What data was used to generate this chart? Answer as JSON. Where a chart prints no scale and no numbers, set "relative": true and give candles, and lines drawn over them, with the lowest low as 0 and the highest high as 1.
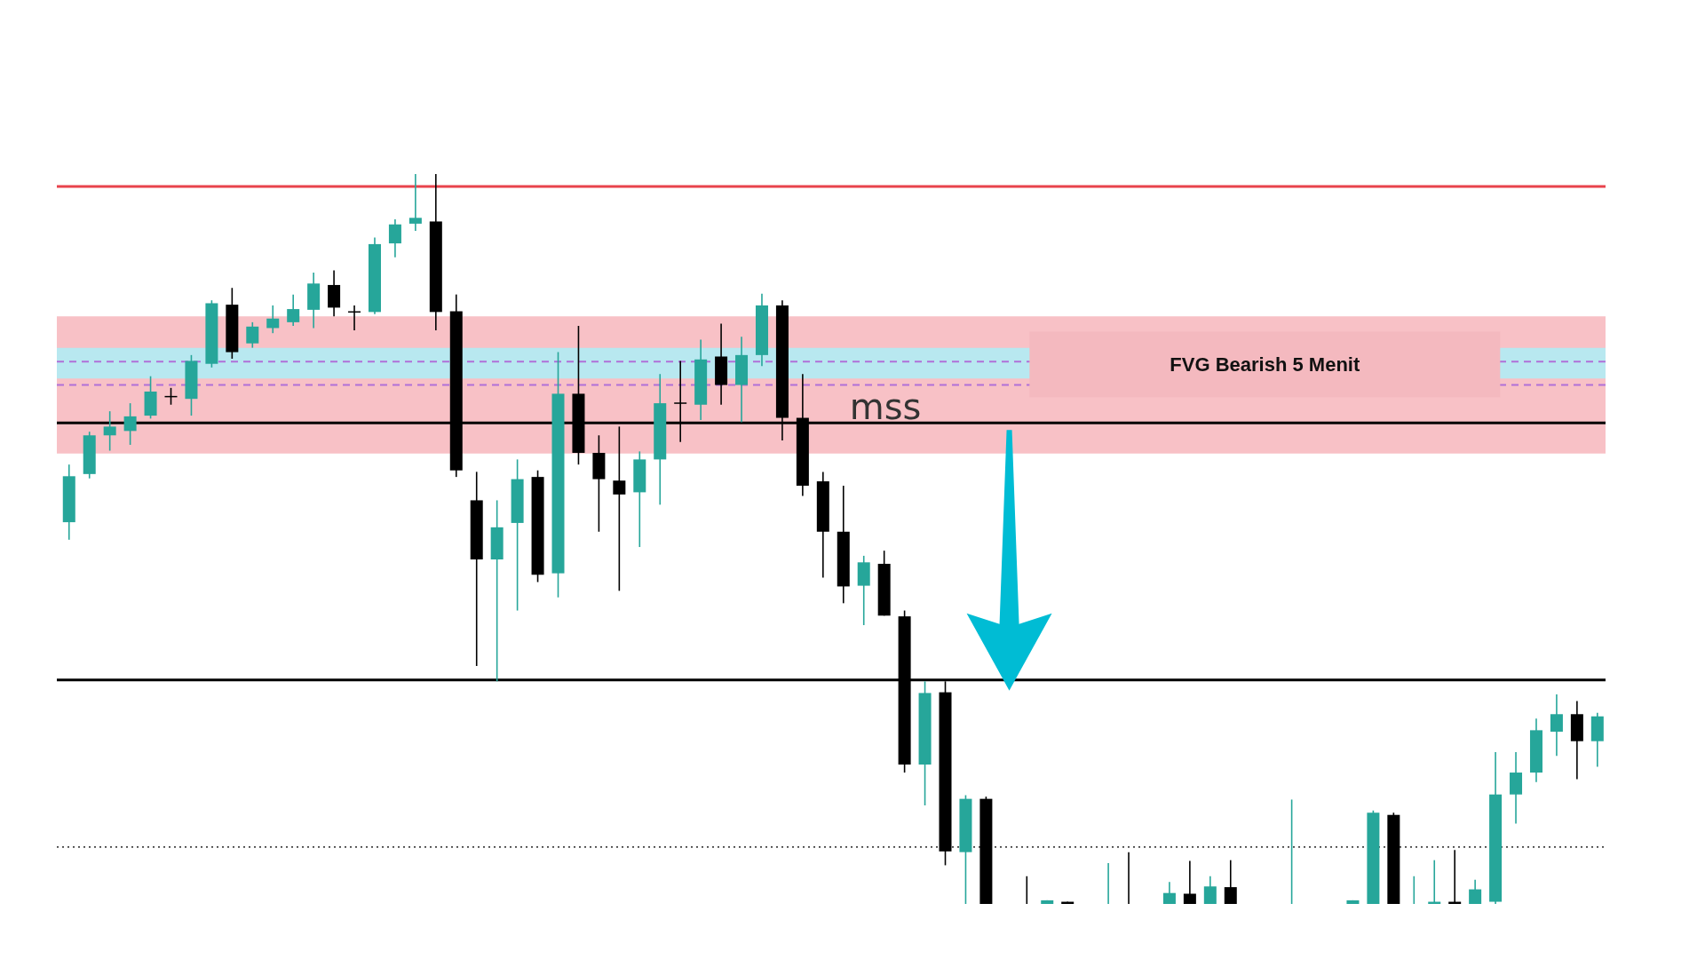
{
  "chart_data": {
    "type": "candlestick",
    "relative": true,
    "tick_labels": false,
    "categories": [
      null,
      null,
      null,
      null,
      null,
      null,
      null,
      null,
      null,
      null,
      null,
      null,
      null,
      null,
      null,
      null,
      null,
      null,
      null,
      null,
      null,
      null,
      null,
      null,
      null,
      null,
      null,
      null,
      null,
      null,
      null,
      null,
      null,
      null,
      null,
      null,
      null,
      null,
      null,
      null,
      null,
      null,
      null,
      null,
      null,
      null,
      null,
      null,
      null,
      null,
      null,
      null,
      null,
      null,
      null,
      null,
      null,
      null,
      null,
      null,
      null,
      null,
      null,
      null,
      null,
      null,
      null,
      null,
      null,
      null,
      null,
      null,
      null,
      null,
      null,
      null
    ],
    "ohlc": [
      [
        0.523,
        0.602,
        0.499,
        0.586
      ],
      [
        0.589,
        0.647,
        0.583,
        0.642
      ],
      [
        0.642,
        0.675,
        0.621,
        0.654
      ],
      [
        0.648,
        0.686,
        0.629,
        0.668
      ],
      [
        0.669,
        0.723,
        0.665,
        0.702
      ],
      [
        0.696,
        0.707,
        0.684,
        0.696
      ],
      [
        0.692,
        0.752,
        0.669,
        0.744
      ],
      [
        0.74,
        0.827,
        0.735,
        0.823
      ],
      [
        0.821,
        0.844,
        0.747,
        0.756
      ],
      [
        0.768,
        0.797,
        0.762,
        0.791
      ],
      [
        0.789,
        0.82,
        0.782,
        0.802
      ],
      [
        0.797,
        0.835,
        0.792,
        0.815
      ],
      [
        0.814,
        0.865,
        0.789,
        0.85
      ],
      [
        0.848,
        0.868,
        0.805,
        0.817
      ],
      [
        0.812,
        0.82,
        0.786,
        0.812
      ],
      [
        0.811,
        0.913,
        0.808,
        0.904
      ],
      [
        0.905,
        0.938,
        0.886,
        0.931
      ],
      [
        0.932,
        1,
        0.922,
        0.94
      ],
      [
        0.935,
        1,
        0.786,
        0.811
      ],
      [
        0.812,
        0.835,
        0.585,
        0.594
      ],
      [
        0.553,
        0.592,
        0.326,
        0.472
      ],
      [
        0.472,
        0.553,
        0.305,
        0.516
      ],
      [
        0.522,
        0.609,
        0.402,
        0.582
      ],
      [
        0.585,
        0.594,
        0.441,
        0.451
      ],
      [
        0.453,
        0.756,
        0.42,
        0.699
      ],
      [
        0.699,
        0.792,
        0.602,
        0.618
      ],
      [
        0.618,
        0.642,
        0.51,
        0.582
      ],
      [
        0.58,
        0.654,
        0.429,
        0.561
      ],
      [
        0.564,
        0.62,
        0.489,
        0.609
      ],
      [
        0.609,
        0.726,
        0.547,
        0.686
      ],
      [
        0.687,
        0.744,
        0.633,
        0.687
      ],
      [
        0.684,
        0.773,
        0.663,
        0.746
      ],
      [
        0.75,
        0.795,
        0.684,
        0.711
      ],
      [
        0.711,
        0.777,
        0.66,
        0.752
      ],
      [
        0.752,
        0.836,
        0.737,
        0.82
      ],
      [
        0.82,
        0.827,
        0.635,
        0.666
      ],
      [
        0.666,
        0.726,
        0.559,
        0.573
      ],
      [
        0.579,
        0.592,
        0.447,
        0.51
      ],
      [
        0.51,
        0.573,
        0.412,
        0.435
      ],
      [
        0.436,
        0.477,
        0.382,
        0.468
      ],
      [
        0.466,
        0.484,
        0.395,
        0.395
      ],
      [
        0.394,
        0.402,
        0.18,
        0.191
      ],
      [
        0.191,
        0.305,
        0.135,
        0.289
      ],
      [
        0.29,
        0.305,
        0.053,
        0.072
      ],
      [
        0.071,
        0.149,
        0,
        0.144
      ],
      [
        0.144,
        0.147,
        0,
        0
      ],
      null,
      [
        0,
        0.038,
        0,
        0
      ],
      [
        0,
        0.005,
        0,
        0.005
      ],
      [
        0.003,
        0.003,
        0,
        0
      ],
      null,
      [
        0,
        0.056,
        0,
        0
      ],
      [
        0,
        0.071,
        0,
        0
      ],
      null,
      [
        0,
        0.03,
        0,
        0.015
      ],
      [
        0.014,
        0.059,
        0,
        0
      ],
      [
        0,
        0.038,
        0,
        0.024
      ],
      [
        0.023,
        0.06,
        0,
        0
      ],
      null,
      null,
      [
        0,
        0.143,
        0,
        0
      ],
      null,
      null,
      [
        0,
        0.005,
        0,
        0.005
      ],
      [
        0,
        0.128,
        0,
        0.125
      ],
      [
        0.122,
        0.125,
        0,
        0
      ],
      [
        0,
        0.038,
        0,
        0
      ],
      [
        0,
        0.06,
        0,
        0.003
      ],
      [
        0.003,
        0.074,
        0,
        0
      ],
      [
        0,
        0.033,
        0,
        0.02
      ],
      [
        0.003,
        0.208,
        0,
        0.15
      ],
      [
        0.15,
        0.208,
        0.11,
        0.18
      ],
      [
        0.18,
        0.254,
        0.167,
        0.238
      ],
      [
        0.236,
        0.287,
        0.203,
        0.26
      ],
      [
        0.26,
        0.278,
        0.171,
        0.223
      ],
      [
        0.223,
        0.262,
        0.188,
        0.257
      ]
    ],
    "colors": [
      "#26a69a",
      "#26a69a",
      "#26a69a",
      "#26a69a",
      "#26a69a",
      "#000000",
      "#26a69a",
      "#26a69a",
      "#000000",
      "#26a69a",
      "#26a69a",
      "#26a69a",
      "#26a69a",
      "#000000",
      "#000000",
      "#26a69a",
      "#26a69a",
      "#26a69a",
      "#000000",
      "#000000",
      "#000000",
      "#26a69a",
      "#26a69a",
      "#000000",
      "#26a69a",
      "#000000",
      "#000000",
      "#000000",
      "#26a69a",
      "#26a69a",
      "#000000",
      "#26a69a",
      "#000000",
      "#26a69a",
      "#26a69a",
      "#000000",
      "#000000",
      "#000000",
      "#000000",
      "#26a69a",
      "#000000",
      "#000000",
      "#26a69a",
      "#000000",
      "#26a69a",
      "#000000",
      null,
      "#000000",
      "#26a69a",
      "#000000",
      null,
      "#26a69a",
      "#000000",
      null,
      "#26a69a",
      "#000000",
      "#26a69a",
      "#000000",
      null,
      null,
      "#26a69a",
      null,
      null,
      "#26a69a",
      "#26a69a",
      "#000000",
      "#26a69a",
      "#26a69a",
      "#000000",
      "#26a69a",
      "#26a69a",
      "#26a69a",
      "#26a69a",
      "#26a69a",
      "#000000",
      "#26a69a"
    ],
    "bands": [
      {
        "axis": "y",
        "from": 0.617,
        "to": 0.805,
        "label": "FVG Bearish 5 Menit",
        "color": "#f8c1c6"
      },
      {
        "axis": "y",
        "from": 0.72,
        "to": 0.762,
        "color": "#b8e8f0"
      }
    ],
    "ref_lines": [
      {
        "axis": "y",
        "value": 0.983,
        "color": "#e8434c",
        "line_style": "solid"
      },
      {
        "axis": "y",
        "value": 0.743,
        "color": "#b070d8",
        "line_style": "dashed"
      },
      {
        "axis": "y",
        "value": 0.711,
        "color": "#b070d8",
        "line_style": "dashed"
      },
      {
        "axis": "y",
        "value": 0.659,
        "label": "mss",
        "color": "#000000",
        "line_style": "solid"
      },
      {
        "axis": "y",
        "value": 0.307,
        "color": "#000000",
        "line_style": "solid"
      },
      {
        "axis": "y",
        "value": 0.078,
        "color": "#444444",
        "line_style": "dotted"
      }
    ]
  }
}
